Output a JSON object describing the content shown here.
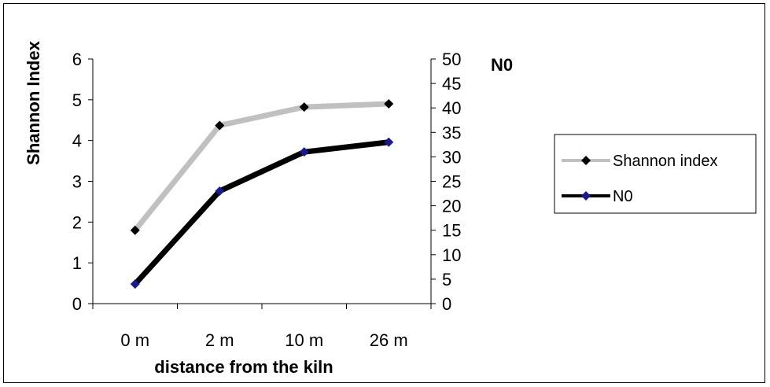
{
  "chart_data": {
    "type": "line",
    "title": "",
    "xlabel": "distance from the kiln",
    "ylabel": "Shannon Index",
    "y2label": "N0",
    "categories": [
      "0 m",
      "2 m",
      "10 m",
      "26 m"
    ],
    "ylim": [
      0,
      6
    ],
    "y2lim": [
      0,
      50
    ],
    "y_ticks": [
      "0",
      "1",
      "2",
      "3",
      "4",
      "5",
      "6"
    ],
    "y2_ticks": [
      "0",
      "5",
      "10",
      "15",
      "20",
      "25",
      "30",
      "35",
      "40",
      "45",
      "50"
    ],
    "grid": false,
    "legend_position": "right",
    "series": [
      {
        "name": "Shannon index",
        "axis": "left",
        "values": [
          1.8,
          4.37,
          4.82,
          4.9
        ],
        "line_color": "#c0c0c0",
        "marker_color": "#000000"
      },
      {
        "name": "N0",
        "axis": "right",
        "values": [
          4,
          23,
          31,
          33
        ],
        "line_color": "#000000",
        "marker_color": "#1a1a8c"
      }
    ]
  }
}
